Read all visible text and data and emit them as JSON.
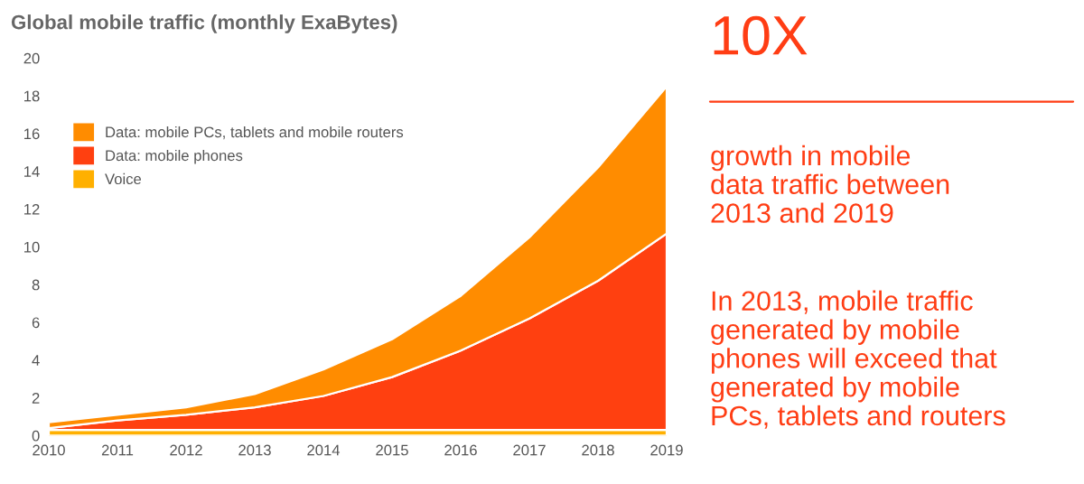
{
  "chart_data": {
    "type": "area",
    "stacked": true,
    "title": "Global mobile traffic (monthly ExaBytes)",
    "x": [
      2010,
      2011,
      2012,
      2013,
      2014,
      2015,
      2016,
      2017,
      2018,
      2019
    ],
    "series": [
      {
        "name": "Voice",
        "color": "#ffb000",
        "values": [
          0.3,
          0.3,
          0.3,
          0.3,
          0.3,
          0.3,
          0.3,
          0.3,
          0.3,
          0.3
        ]
      },
      {
        "name": "Data: mobile phones",
        "color": "#ff4010",
        "values": [
          0.1,
          0.5,
          0.8,
          1.2,
          1.8,
          2.8,
          4.2,
          5.9,
          7.9,
          10.4
        ]
      },
      {
        "name": "Data: mobile PCs, tablets and mobile routers",
        "color": "#ff8c00",
        "values": [
          0.3,
          0.3,
          0.4,
          0.7,
          1.4,
          2.0,
          2.9,
          4.3,
          6.0,
          7.8
        ]
      }
    ],
    "xlim": [
      2010,
      2019
    ],
    "xticks": [
      2010,
      2011,
      2012,
      2013,
      2014,
      2015,
      2016,
      2017,
      2018,
      2019
    ],
    "ylim": [
      0,
      20
    ],
    "yticks": [
      0,
      2,
      4,
      6,
      8,
      10,
      12,
      14,
      16,
      18,
      20
    ],
    "legend": "top left",
    "annotations": [
      "10X",
      "growth in mobile\ndata traffic between\n2013 and 2019",
      "In 2013, mobile traffic\ngenerated by mobile\nphones will exceed that\ngenerated by mobile\nPCs, tablets and routers"
    ]
  }
}
